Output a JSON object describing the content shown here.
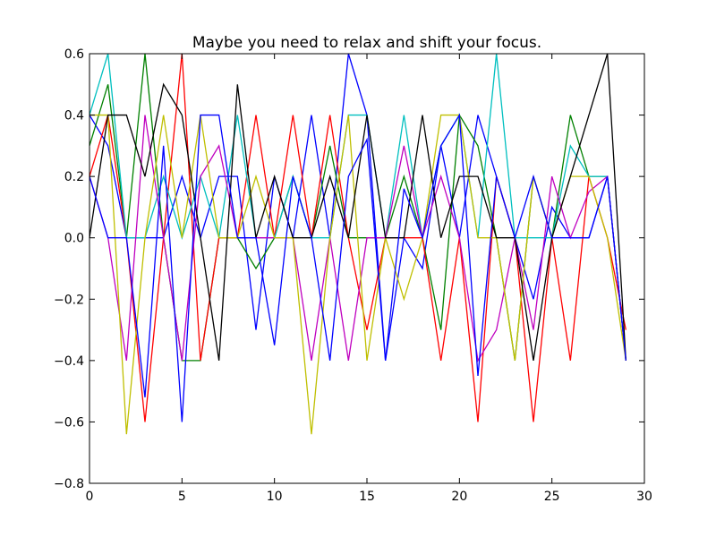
{
  "chart_data": {
    "type": "line",
    "title": "Maybe you need to relax and shift your focus.",
    "xlabel": "",
    "ylabel": "",
    "xlim": [
      0,
      30
    ],
    "ylim": [
      -0.8,
      0.6
    ],
    "xticks": [
      "0",
      "5",
      "10",
      "15",
      "20",
      "25",
      "30"
    ],
    "yticks": [
      "−0.8",
      "−0.6",
      "−0.4",
      "−0.2",
      "0.0",
      "0.2",
      "0.4",
      "0.6"
    ],
    "grid": false,
    "legend": "none",
    "x": [
      0,
      1,
      2,
      3,
      4,
      5,
      6,
      7,
      8,
      9,
      10,
      11,
      12,
      13,
      14,
      15,
      16,
      17,
      18,
      19,
      20,
      21,
      22,
      23,
      24,
      25,
      26,
      27,
      28,
      29
    ],
    "series": [
      {
        "color": "#0000ff",
        "values": [
          0.4,
          0.3,
          0.0,
          0.0,
          0.0,
          0.2,
          0.0,
          0.2,
          0.2,
          -0.3,
          0.2,
          0.0,
          0.4,
          0.0,
          0.6,
          0.4,
          -0.4,
          0.0,
          -0.1,
          0.3,
          0.0,
          0.4,
          0.2,
          0.0,
          -0.2,
          0.1,
          0.0,
          0.0,
          0.2,
          -0.4
        ]
      },
      {
        "color": "#008000",
        "values": [
          0.3,
          0.5,
          0.0,
          0.6,
          0.0,
          -0.4,
          -0.4,
          0.0,
          0.0,
          -0.1,
          0.0,
          0.2,
          0.0,
          0.3,
          0.0,
          0.0,
          0.0,
          0.2,
          0.0,
          -0.3,
          0.4,
          0.3,
          0.0,
          -0.4,
          0.2,
          0.0,
          0.4,
          0.2,
          0.2,
          -0.4
        ]
      },
      {
        "color": "#ff0000",
        "values": [
          0.2,
          0.4,
          0.0,
          -0.6,
          0.0,
          0.6,
          -0.4,
          0.0,
          0.0,
          0.4,
          0.0,
          0.4,
          0.0,
          0.4,
          0.0,
          -0.3,
          0.0,
          0.0,
          0.0,
          -0.4,
          0.0,
          -0.6,
          0.2,
          0.0,
          -0.6,
          0.0,
          -0.4,
          0.2,
          0.0,
          -0.3
        ]
      },
      {
        "color": "#00bfbf",
        "values": [
          0.4,
          0.6,
          0.0,
          0.0,
          0.2,
          0.0,
          0.2,
          0.0,
          0.4,
          0.0,
          0.0,
          0.2,
          0.0,
          0.0,
          0.4,
          0.4,
          0.0,
          0.4,
          0.0,
          0.3,
          0.4,
          0.0,
          0.6,
          0.0,
          0.0,
          0.0,
          0.3,
          0.2,
          0.2,
          -0.4
        ]
      },
      {
        "color": "#bf00bf",
        "values": [
          0.2,
          0.0,
          -0.4,
          0.4,
          0.0,
          -0.4,
          0.2,
          0.3,
          0.0,
          0.0,
          0.0,
          0.0,
          -0.4,
          0.0,
          -0.4,
          0.0,
          0.0,
          0.3,
          0.0,
          0.2,
          0.0,
          -0.4,
          -0.3,
          0.0,
          -0.3,
          0.2,
          0.0,
          0.15,
          0.2,
          -0.4
        ]
      },
      {
        "color": "#bfbf00",
        "values": [
          0.4,
          0.4,
          -0.64,
          0.0,
          0.4,
          0.0,
          0.4,
          0.0,
          0.0,
          0.2,
          0.0,
          0.0,
          -0.64,
          0.0,
          0.4,
          -0.4,
          0.0,
          -0.2,
          0.0,
          0.4,
          0.4,
          0.0,
          0.0,
          -0.4,
          0.2,
          0.0,
          0.2,
          0.2,
          0.0,
          -0.4
        ]
      },
      {
        "color": "#000000",
        "values": [
          0.0,
          0.4,
          0.4,
          0.2,
          0.5,
          0.4,
          0.0,
          -0.4,
          0.5,
          0.0,
          0.2,
          0.0,
          0.0,
          0.2,
          0.0,
          0.4,
          0.0,
          0.0,
          0.4,
          0.0,
          0.2,
          0.2,
          0.0,
          0.0,
          -0.4,
          0.0,
          0.2,
          0.4,
          0.6,
          -0.4
        ]
      },
      {
        "color": "#0000ff",
        "values": [
          0.2,
          0.0,
          0.0,
          -0.52,
          0.3,
          -0.6,
          0.4,
          0.4,
          0.0,
          0.0,
          -0.35,
          0.2,
          0.0,
          -0.4,
          0.2,
          0.32,
          -0.4,
          0.16,
          0.0,
          0.3,
          0.4,
          -0.45,
          0.2,
          0.0,
          0.2,
          0.0,
          0.0,
          0.0,
          0.2,
          -0.4
        ]
      }
    ]
  }
}
